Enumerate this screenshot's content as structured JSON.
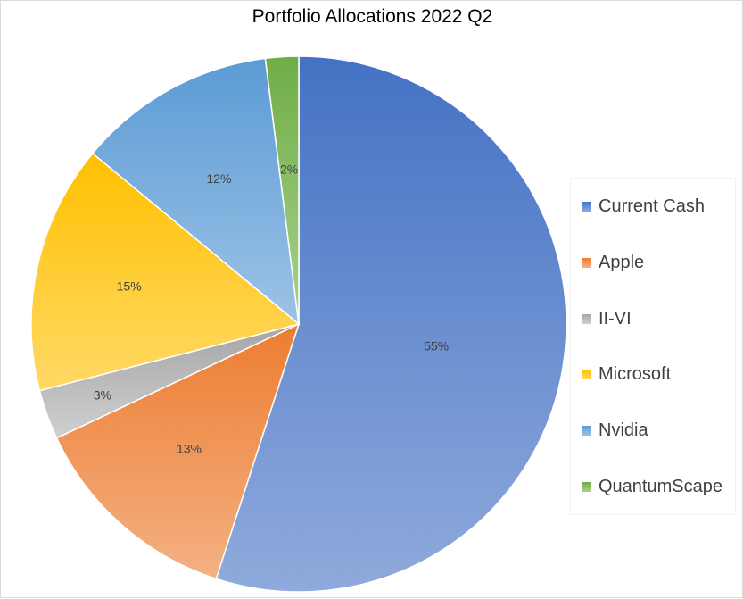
{
  "chart_data": {
    "type": "pie",
    "title": "Portfolio Allocations 2022 Q2",
    "categories": [
      "Current Cash",
      "Apple",
      "II-VI",
      "Microsoft",
      "Nvidia",
      "QuantumScape"
    ],
    "values": [
      55,
      13,
      3,
      15,
      12,
      2
    ],
    "data_labels": [
      "55%",
      "13%",
      "3%",
      "15%",
      "12%",
      "2%"
    ],
    "colors": [
      "#4472c4",
      "#ed7d31",
      "#a5a5a5",
      "#ffc000",
      "#5b9bd5",
      "#70ad47"
    ],
    "colors_light": [
      "#8faadc",
      "#f4b183",
      "#d0d0d0",
      "#ffd966",
      "#9dc3e6",
      "#a9d18e"
    ],
    "start_angle": "12 o'clock",
    "direction": "clockwise",
    "legend_position": "right"
  }
}
